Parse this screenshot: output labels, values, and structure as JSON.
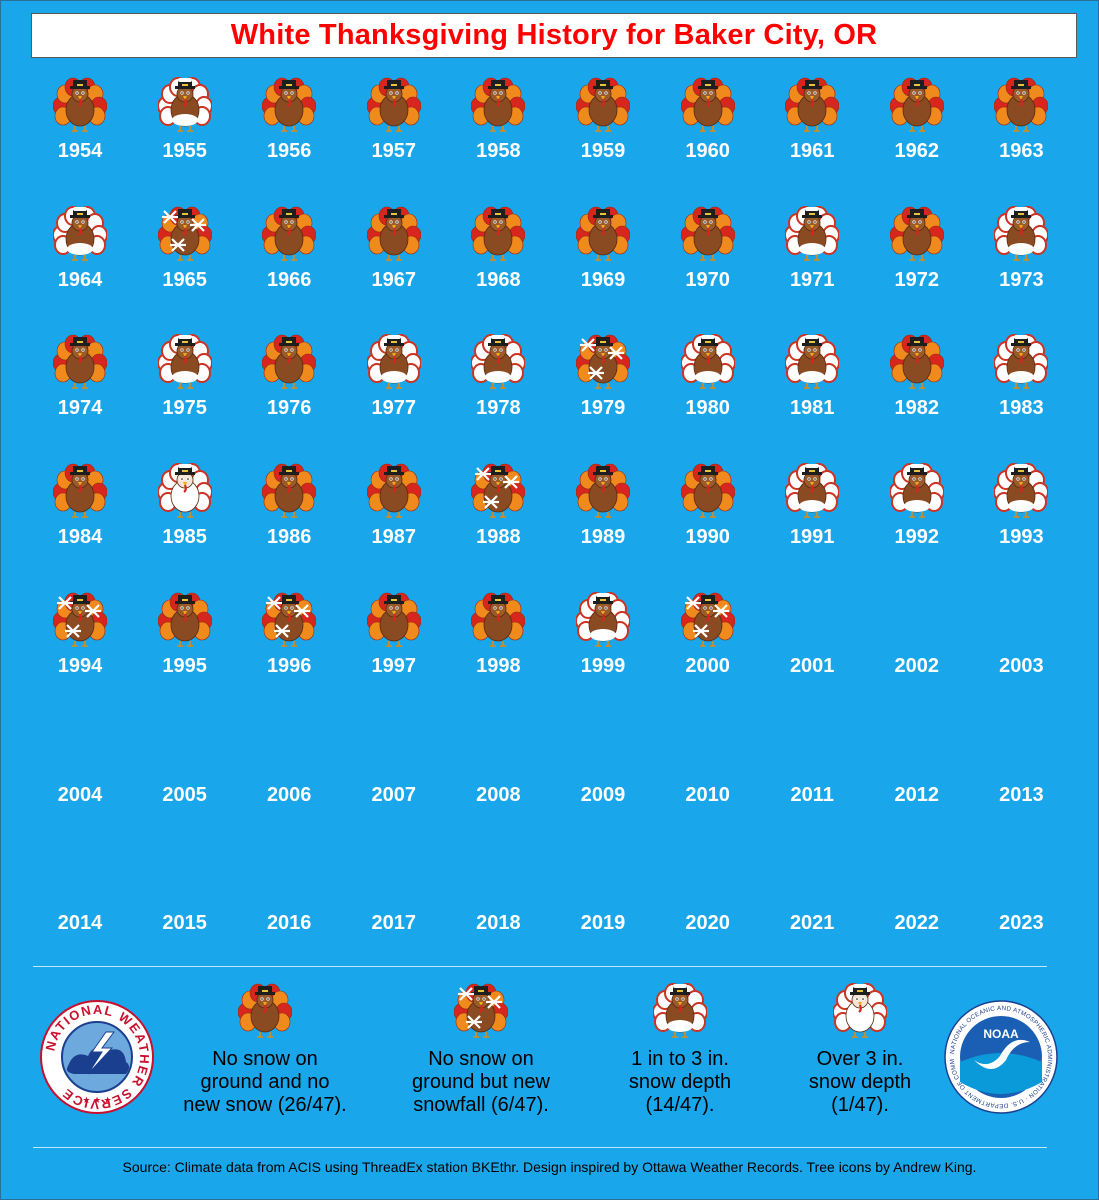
{
  "title": "White Thanksgiving History for Baker City, OR",
  "colors": {
    "background": "#1aa6ea",
    "title_text": "#ff0000",
    "turkey_body": "#8a4a22",
    "feather_red": "#d6261d",
    "feather_orange": "#f08a1c",
    "snow_white": "#ffffff"
  },
  "chart_data": {
    "type": "table",
    "categories": [
      {
        "key": "none",
        "label": "No snow on\nground and no\nnew snow (26/47).",
        "icon": "turkey-plain-icon"
      },
      {
        "key": "new",
        "label": "No snow on\nground but new\nsnowfall (6/47).",
        "icon": "turkey-snowflakes-icon"
      },
      {
        "key": "depth13",
        "label": "1 in to 3 in.\nsnow depth\n(14/47).",
        "icon": "turkey-snow-capped-icon"
      },
      {
        "key": "depth3p",
        "label": "Over 3 in.\nsnow depth\n(1/47).",
        "icon": "turkey-snow-covered-icon"
      }
    ],
    "years": [
      {
        "year": "1954",
        "status": "none"
      },
      {
        "year": "1955",
        "status": "depth13"
      },
      {
        "year": "1956",
        "status": "none"
      },
      {
        "year": "1957",
        "status": "none"
      },
      {
        "year": "1958",
        "status": "none"
      },
      {
        "year": "1959",
        "status": "none"
      },
      {
        "year": "1960",
        "status": "none"
      },
      {
        "year": "1961",
        "status": "none"
      },
      {
        "year": "1962",
        "status": "none"
      },
      {
        "year": "1963",
        "status": "none"
      },
      {
        "year": "1964",
        "status": "depth13"
      },
      {
        "year": "1965",
        "status": "new"
      },
      {
        "year": "1966",
        "status": "none"
      },
      {
        "year": "1967",
        "status": "none"
      },
      {
        "year": "1968",
        "status": "none"
      },
      {
        "year": "1969",
        "status": "none"
      },
      {
        "year": "1970",
        "status": "none"
      },
      {
        "year": "1971",
        "status": "depth13"
      },
      {
        "year": "1972",
        "status": "none"
      },
      {
        "year": "1973",
        "status": "depth13"
      },
      {
        "year": "1974",
        "status": "none"
      },
      {
        "year": "1975",
        "status": "depth13"
      },
      {
        "year": "1976",
        "status": "none"
      },
      {
        "year": "1977",
        "status": "depth13"
      },
      {
        "year": "1978",
        "status": "depth13"
      },
      {
        "year": "1979",
        "status": "new"
      },
      {
        "year": "1980",
        "status": "depth13"
      },
      {
        "year": "1981",
        "status": "depth13"
      },
      {
        "year": "1982",
        "status": "none"
      },
      {
        "year": "1983",
        "status": "depth13"
      },
      {
        "year": "1984",
        "status": "none"
      },
      {
        "year": "1985",
        "status": "depth3p"
      },
      {
        "year": "1986",
        "status": "none"
      },
      {
        "year": "1987",
        "status": "none"
      },
      {
        "year": "1988",
        "status": "new"
      },
      {
        "year": "1989",
        "status": "none"
      },
      {
        "year": "1990",
        "status": "none"
      },
      {
        "year": "1991",
        "status": "depth13"
      },
      {
        "year": "1992",
        "status": "depth13"
      },
      {
        "year": "1993",
        "status": "depth13"
      },
      {
        "year": "1994",
        "status": "new"
      },
      {
        "year": "1995",
        "status": "none"
      },
      {
        "year": "1996",
        "status": "new"
      },
      {
        "year": "1997",
        "status": "none"
      },
      {
        "year": "1998",
        "status": "none"
      },
      {
        "year": "1999",
        "status": "depth13"
      },
      {
        "year": "2000",
        "status": "new"
      },
      {
        "year": "2001",
        "status": ""
      },
      {
        "year": "2002",
        "status": ""
      },
      {
        "year": "2003",
        "status": ""
      },
      {
        "year": "2004",
        "status": ""
      },
      {
        "year": "2005",
        "status": ""
      },
      {
        "year": "2006",
        "status": ""
      },
      {
        "year": "2007",
        "status": ""
      },
      {
        "year": "2008",
        "status": ""
      },
      {
        "year": "2009",
        "status": ""
      },
      {
        "year": "2010",
        "status": ""
      },
      {
        "year": "2011",
        "status": ""
      },
      {
        "year": "2012",
        "status": ""
      },
      {
        "year": "2013",
        "status": ""
      },
      {
        "year": "2014",
        "status": ""
      },
      {
        "year": "2015",
        "status": ""
      },
      {
        "year": "2016",
        "status": ""
      },
      {
        "year": "2017",
        "status": ""
      },
      {
        "year": "2018",
        "status": ""
      },
      {
        "year": "2019",
        "status": ""
      },
      {
        "year": "2020",
        "status": ""
      },
      {
        "year": "2021",
        "status": ""
      },
      {
        "year": "2022",
        "status": ""
      },
      {
        "year": "2023",
        "status": ""
      }
    ]
  },
  "logos": {
    "nws_text": "NATIONAL WEATHER SERVICE",
    "noaa_text": "NOAA",
    "noaa_ring_text": "NATIONAL OCEANIC AND ATMOSPHERIC ADMINISTRATION · U.S. DEPARTMENT OF COMMERCE"
  },
  "source": "Source: Climate data from ACIS using ThreadEx station BKEthr. Design inspired by Ottawa Weather Records. Tree icons by Andrew King."
}
